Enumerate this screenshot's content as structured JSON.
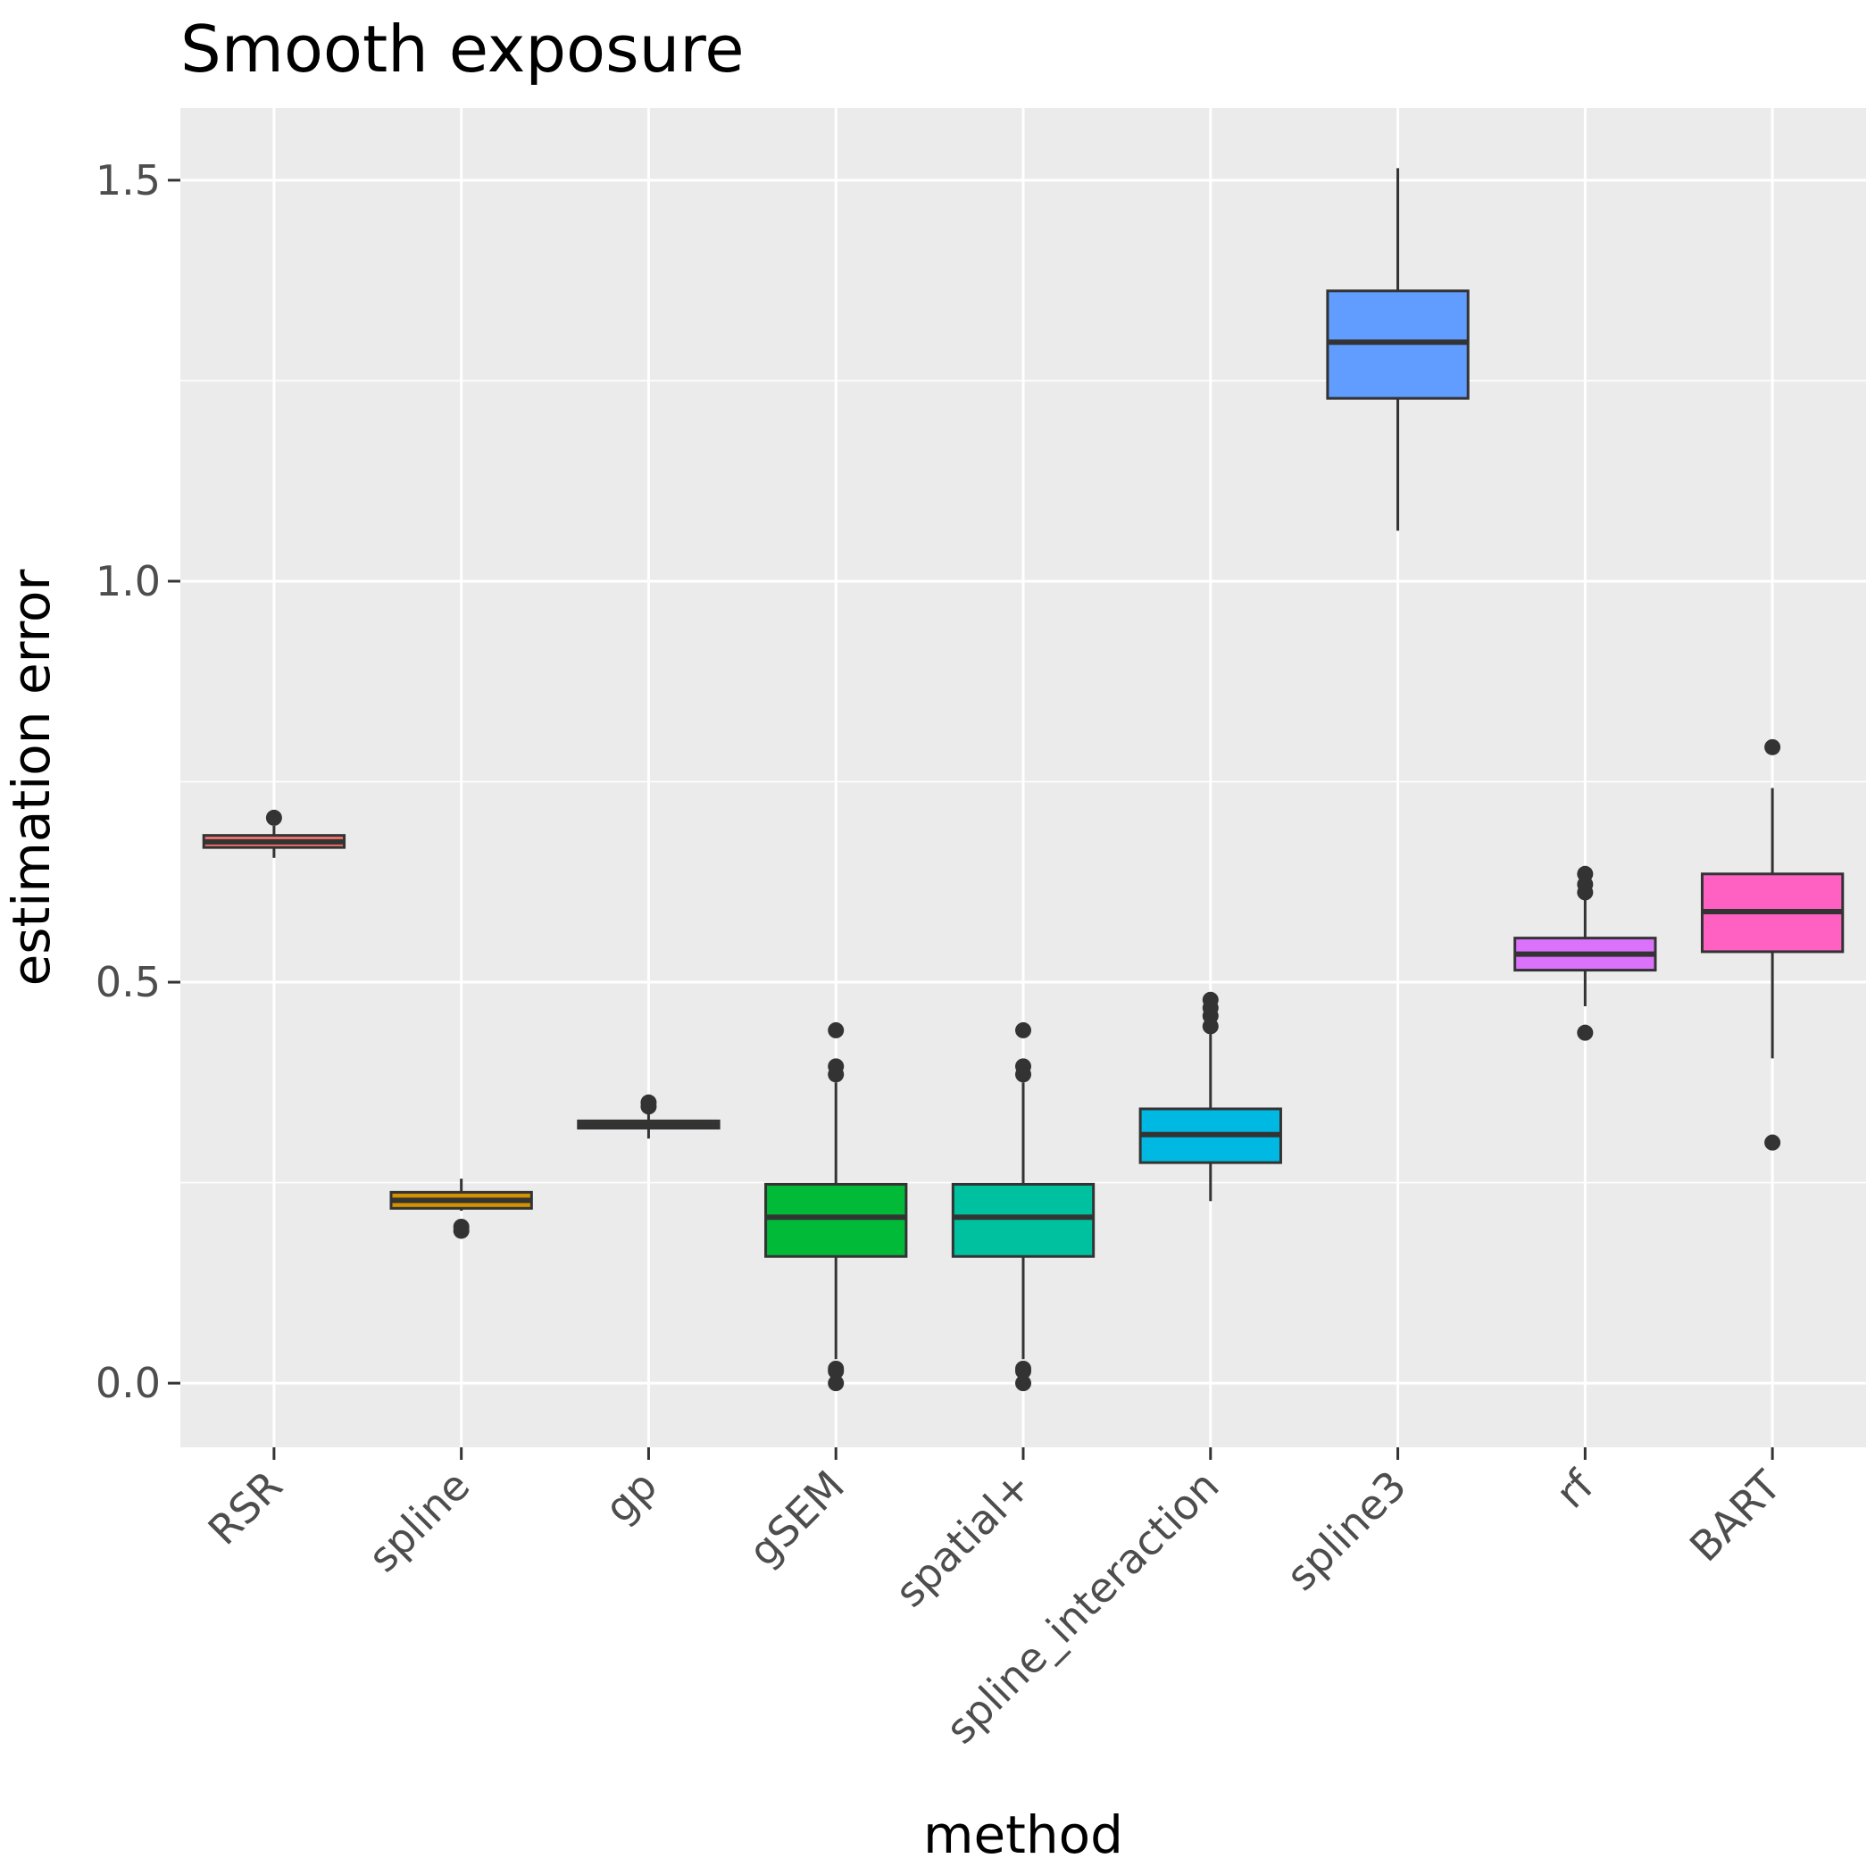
{
  "chart_data": {
    "type": "box",
    "title": "Smooth exposure",
    "xlabel": "method",
    "ylabel": "estimation error",
    "ylim": [
      -0.08,
      1.59
    ],
    "y_ticks": [
      0.0,
      0.5,
      1.0,
      1.5
    ],
    "y_tick_labels": [
      "0.0",
      "0.5",
      "1.0",
      "1.5"
    ],
    "grid": true,
    "legend": "none",
    "categories": [
      "RSR",
      "spline",
      "gp",
      "gSEM",
      "spatial+",
      "spline_interaction",
      "spline3",
      "rf",
      "BART"
    ],
    "boxes": [
      {
        "category": "RSR",
        "fill": "#F8766D",
        "whisker_low": 0.655,
        "q1": 0.668,
        "median": 0.675,
        "q3": 0.683,
        "whisker_high": 0.695,
        "outliers": [
          0.705
        ]
      },
      {
        "category": "spline",
        "fill": "#D39200",
        "whisker_low": 0.215,
        "q1": 0.218,
        "median": 0.228,
        "q3": 0.238,
        "whisker_high": 0.255,
        "outliers": [
          0.19,
          0.195
        ]
      },
      {
        "category": "gp",
        "fill": "#93AA00",
        "whisker_low": 0.305,
        "q1": 0.318,
        "median": 0.322,
        "q3": 0.327,
        "whisker_high": 0.338,
        "outliers": [
          0.345,
          0.35
        ]
      },
      {
        "category": "gSEM",
        "fill": "#00BA38",
        "whisker_low": 0.03,
        "q1": 0.158,
        "median": 0.207,
        "q3": 0.248,
        "whisker_high": 0.375,
        "outliers": [
          0.0,
          0.015,
          0.018,
          0.385,
          0.395,
          0.44
        ]
      },
      {
        "category": "spatial+",
        "fill": "#00C19F",
        "whisker_low": 0.03,
        "q1": 0.158,
        "median": 0.207,
        "q3": 0.248,
        "whisker_high": 0.375,
        "outliers": [
          0.0,
          0.015,
          0.018,
          0.385,
          0.395,
          0.44
        ]
      },
      {
        "category": "spline_interaction",
        "fill": "#00B9E3",
        "whisker_low": 0.227,
        "q1": 0.275,
        "median": 0.31,
        "q3": 0.342,
        "whisker_high": 0.435,
        "outliers": [
          0.445,
          0.458,
          0.468,
          0.478
        ]
      },
      {
        "category": "spline3",
        "fill": "#619CFF",
        "whisker_low": 1.063,
        "q1": 1.228,
        "median": 1.298,
        "q3": 1.362,
        "whisker_high": 1.515,
        "outliers": []
      },
      {
        "category": "rf",
        "fill": "#DB72FB",
        "whisker_low": 0.47,
        "q1": 0.515,
        "median": 0.535,
        "q3": 0.555,
        "whisker_high": 0.605,
        "outliers": [
          0.437,
          0.612,
          0.622,
          0.635
        ]
      },
      {
        "category": "BART",
        "fill": "#FF61C3",
        "whisker_low": 0.405,
        "q1": 0.538,
        "median": 0.588,
        "q3": 0.635,
        "whisker_high": 0.742,
        "outliers": [
          0.3,
          0.793
        ]
      }
    ]
  }
}
